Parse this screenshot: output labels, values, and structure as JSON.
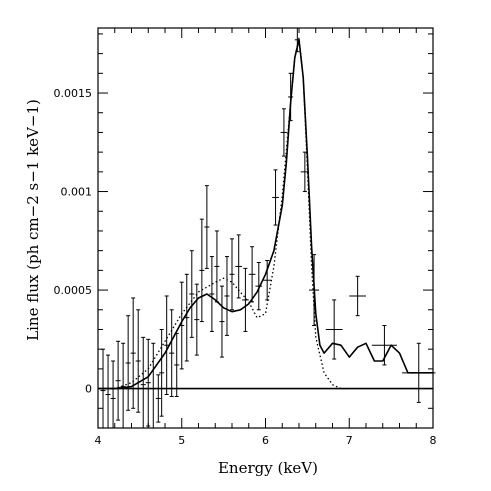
{
  "chart_data": {
    "type": "line",
    "xlabel": "Energy (keV)",
    "ylabel": "Line flux (ph cm−2 s−1 keV−1)",
    "xlim": [
      4,
      8
    ],
    "ylim": [
      -0.0002,
      0.00183
    ],
    "x_ticks": [
      4,
      5,
      6,
      7,
      8
    ],
    "x_tick_labels": [
      "4",
      "5",
      "6",
      "7",
      "8"
    ],
    "y_ticks": [
      0,
      0.0005,
      0.001,
      0.0015
    ],
    "y_tick_labels": [
      "0",
      "0.0005",
      "0.001",
      "0.0015"
    ],
    "grid": false,
    "legend": "none",
    "series": [
      {
        "style": "data points with error bars",
        "points": [
          {
            "x": 4.06,
            "y": -1e-05,
            "xerr": 0.03,
            "yerr": 0.00021
          },
          {
            "x": 4.12,
            "y": -3e-05,
            "xerr": 0.03,
            "yerr": 0.0002
          },
          {
            "x": 4.18,
            "y": -5e-05,
            "xerr": 0.03,
            "yerr": 0.00019
          },
          {
            "x": 4.24,
            "y": 4e-05,
            "xerr": 0.03,
            "yerr": 0.0002
          },
          {
            "x": 4.3,
            "y": 1e-05,
            "xerr": 0.03,
            "yerr": 0.00022
          },
          {
            "x": 4.36,
            "y": 0.00013,
            "xerr": 0.03,
            "yerr": 0.00024
          },
          {
            "x": 4.42,
            "y": 0.00018,
            "xerr": 0.03,
            "yerr": 0.00028
          },
          {
            "x": 4.48,
            "y": 0.00014,
            "xerr": 0.03,
            "yerr": 0.00026
          },
          {
            "x": 4.54,
            "y": 2e-05,
            "xerr": 0.03,
            "yerr": 0.00024
          },
          {
            "x": 4.6,
            "y": 3e-05,
            "xerr": 0.03,
            "yerr": 0.00022
          },
          {
            "x": 4.66,
            "y": 0.0,
            "xerr": 0.03,
            "yerr": 0.00023
          },
          {
            "x": 4.72,
            "y": -5e-05,
            "xerr": 0.03,
            "yerr": 0.00012
          },
          {
            "x": 4.76,
            "y": 8e-05,
            "xerr": 0.03,
            "yerr": 0.00022
          },
          {
            "x": 4.82,
            "y": 0.00022,
            "xerr": 0.03,
            "yerr": 0.00025
          },
          {
            "x": 4.88,
            "y": 0.00018,
            "xerr": 0.03,
            "yerr": 0.00022
          },
          {
            "x": 4.94,
            "y": 0.00012,
            "xerr": 0.03,
            "yerr": 0.00016
          },
          {
            "x": 5.0,
            "y": 0.00032,
            "xerr": 0.03,
            "yerr": 0.00022
          },
          {
            "x": 5.06,
            "y": 0.00036,
            "xerr": 0.03,
            "yerr": 0.00022
          },
          {
            "x": 5.12,
            "y": 0.00048,
            "xerr": 0.03,
            "yerr": 0.00022
          },
          {
            "x": 5.18,
            "y": 0.00035,
            "xerr": 0.03,
            "yerr": 0.00018
          },
          {
            "x": 5.24,
            "y": 0.0006,
            "xerr": 0.03,
            "yerr": 0.00026
          },
          {
            "x": 5.3,
            "y": 0.00082,
            "xerr": 0.03,
            "yerr": 0.00021
          },
          {
            "x": 5.36,
            "y": 0.00048,
            "xerr": 0.03,
            "yerr": 0.00019
          },
          {
            "x": 5.42,
            "y": 0.00062,
            "xerr": 0.03,
            "yerr": 0.00018
          },
          {
            "x": 5.48,
            "y": 0.00034,
            "xerr": 0.03,
            "yerr": 0.00018
          },
          {
            "x": 5.54,
            "y": 0.00047,
            "xerr": 0.03,
            "yerr": 0.0002
          },
          {
            "x": 5.6,
            "y": 0.00058,
            "xerr": 0.03,
            "yerr": 0.00018
          },
          {
            "x": 5.68,
            "y": 0.00062,
            "xerr": 0.04,
            "yerr": 0.00016
          },
          {
            "x": 5.76,
            "y": 0.00045,
            "xerr": 0.04,
            "yerr": 0.00016
          },
          {
            "x": 5.84,
            "y": 0.00058,
            "xerr": 0.04,
            "yerr": 0.00014
          },
          {
            "x": 5.92,
            "y": 0.00052,
            "xerr": 0.04,
            "yerr": 0.00012
          },
          {
            "x": 6.02,
            "y": 0.00055,
            "xerr": 0.05,
            "yerr": 0.0001
          },
          {
            "x": 6.12,
            "y": 0.00097,
            "xerr": 0.04,
            "yerr": 0.00014
          },
          {
            "x": 6.22,
            "y": 0.0013,
            "xerr": 0.04,
            "yerr": 0.00012
          },
          {
            "x": 6.3,
            "y": 0.00148,
            "xerr": 0.03,
            "yerr": 0.00012
          },
          {
            "x": 6.38,
            "y": 0.00177,
            "xerr": 0.03,
            "yerr": 6e-05
          },
          {
            "x": 6.47,
            "y": 0.0011,
            "xerr": 0.05,
            "yerr": 0.0001
          },
          {
            "x": 6.58,
            "y": 0.0005,
            "xerr": 0.06,
            "yerr": 0.00018
          },
          {
            "x": 6.82,
            "y": 0.0003,
            "xerr": 0.1,
            "yerr": 0.00015
          },
          {
            "x": 7.1,
            "y": 0.00047,
            "xerr": 0.1,
            "yerr": 0.0001
          },
          {
            "x": 7.42,
            "y": 0.00022,
            "xerr": 0.15,
            "yerr": 0.0001
          },
          {
            "x": 7.83,
            "y": 8e-05,
            "xerr": 0.2,
            "yerr": 0.00015
          }
        ]
      },
      {
        "style": "solid model curve",
        "x": [
          4.0,
          4.2,
          4.4,
          4.6,
          4.8,
          5.0,
          5.1,
          5.2,
          5.3,
          5.4,
          5.5,
          5.6,
          5.7,
          5.8,
          5.9,
          6.0,
          6.1,
          6.2,
          6.25,
          6.3,
          6.35,
          6.4,
          6.45,
          6.5,
          6.55,
          6.6,
          6.65,
          6.7,
          6.8,
          6.9,
          7.0,
          7.1,
          7.2,
          7.3,
          7.4,
          7.5,
          7.6,
          7.7,
          7.8,
          8.0
        ],
        "y": [
          0.0,
          0.0,
          1e-05,
          6e-05,
          0.00018,
          0.00034,
          0.00041,
          0.00046,
          0.00048,
          0.00045,
          0.00041,
          0.00039,
          0.0004,
          0.00043,
          0.00049,
          0.00058,
          0.0007,
          0.00093,
          0.00115,
          0.00145,
          0.00168,
          0.00177,
          0.00158,
          0.00118,
          0.00072,
          0.00038,
          0.00022,
          0.00018,
          0.00023,
          0.00022,
          0.00016,
          0.00021,
          0.00023,
          0.00014,
          0.00014,
          0.00022,
          0.00018,
          8e-05,
          8e-05,
          8e-05
        ]
      },
      {
        "style": "dotted model curve",
        "x": [
          4.0,
          4.2,
          4.4,
          4.6,
          4.8,
          5.0,
          5.2,
          5.4,
          5.5,
          5.6,
          5.8,
          5.9,
          6.0,
          6.1,
          6.2,
          6.3,
          6.35,
          6.4,
          6.45,
          6.5,
          6.55,
          6.6,
          6.7,
          6.8,
          6.9,
          7.0
        ],
        "y": [
          0.0,
          0.0,
          3e-05,
          0.0001,
          0.00024,
          0.00038,
          0.00049,
          0.00054,
          0.00056,
          0.00054,
          0.00044,
          0.00036,
          0.00038,
          0.00062,
          0.00098,
          0.00145,
          0.00168,
          0.00178,
          0.00158,
          0.00112,
          0.00062,
          0.00026,
          8e-05,
          2e-05,
          0.0,
          0.0
        ]
      },
      {
        "style": "zero baseline",
        "x": [
          4.0,
          8.0
        ],
        "y": [
          0.0,
          0.0
        ]
      }
    ]
  }
}
